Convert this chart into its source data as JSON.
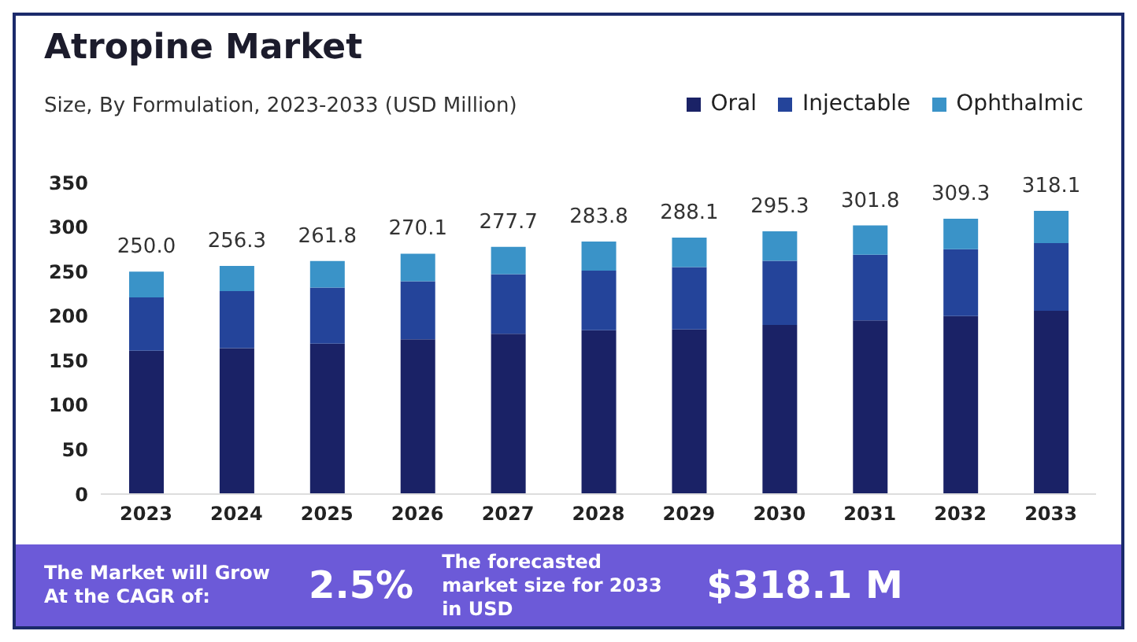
{
  "chart_data": {
    "type": "bar",
    "title": "Atropine Market",
    "subtitle": "Size, By Formulation, 2023-2033 (USD Million)",
    "categories": [
      "2023",
      "2024",
      "2025",
      "2026",
      "2027",
      "2028",
      "2029",
      "2030",
      "2031",
      "2032",
      "2033"
    ],
    "series": [
      {
        "name": "Oral",
        "color": "#1a2266",
        "values": [
          161,
          164,
          169,
          174,
          180,
          184,
          185,
          190,
          195,
          200,
          206
        ]
      },
      {
        "name": "Injectable",
        "color": "#24449a",
        "values": [
          60,
          64,
          63,
          65,
          67,
          67,
          70,
          72,
          74,
          75,
          76
        ]
      },
      {
        "name": "Ophthalmic",
        "color": "#3a93c8",
        "values": [
          29.0,
          28.3,
          29.8,
          31.1,
          30.7,
          32.8,
          33.1,
          33.3,
          32.8,
          34.3,
          36.1
        ]
      }
    ],
    "stacked": true,
    "totals": [
      "250.0",
      "256.3",
      "261.8",
      "270.1",
      "277.7",
      "283.8",
      "288.1",
      "295.3",
      "301.8",
      "309.3",
      "318.1"
    ],
    "ylim": [
      0,
      350
    ],
    "yticks": [
      0,
      50,
      100,
      150,
      200,
      250,
      300,
      350
    ],
    "grid": false,
    "legend": "top right",
    "annotations": [
      "The Market will Grow At the CAGR of:",
      "2.5%",
      "The forecasted market size for 2033 in USD",
      "$318.1 M"
    ]
  }
}
